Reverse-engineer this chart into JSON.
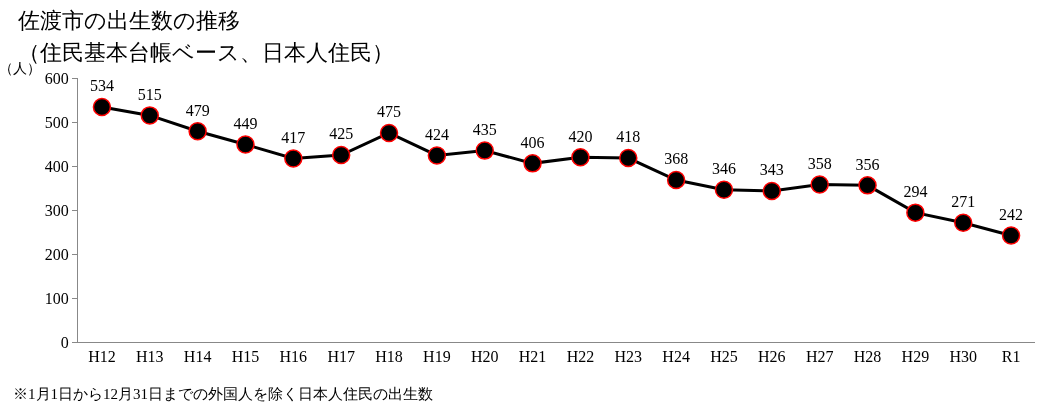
{
  "chart_data": {
    "type": "line",
    "title": "佐渡市の出生数の推移",
    "subtitle": "（住民基本台帳ベース、日本人住民）",
    "ylabel": "（人）",
    "categories": [
      "H12",
      "H13",
      "H14",
      "H15",
      "H16",
      "H17",
      "H18",
      "H19",
      "H20",
      "H21",
      "H22",
      "H23",
      "H24",
      "H25",
      "H26",
      "H27",
      "H28",
      "H29",
      "H30",
      "R1"
    ],
    "series": [
      {
        "color": "#000000",
        "values": [
          534,
          515,
          479,
          449,
          417,
          425,
          475,
          424,
          435,
          406,
          420,
          418,
          368,
          346,
          343,
          358,
          356,
          294,
          271,
          242
        ]
      }
    ],
    "ylim": [
      0,
      600
    ],
    "yticks": [
      0,
      100,
      200,
      300,
      400,
      500,
      600
    ],
    "data_labels": true,
    "marker": "circle",
    "line_style": "solid",
    "legend": false,
    "annotations": [
      "※1月1日から12月31日までの外国人を除く日本人住民の出生数"
    ]
  }
}
